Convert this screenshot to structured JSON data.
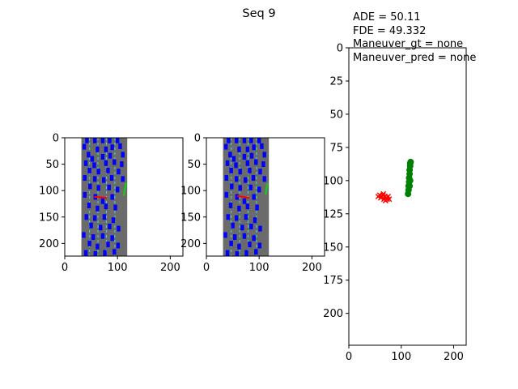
{
  "title": "Seq 9",
  "annotations": {
    "ade": "ADE = 50.11",
    "fde": "FDE = 49.332",
    "maneuver_gt": "Maneuver_gt = none",
    "maneuver_pred": "Maneuver_pred = none"
  },
  "colors": {
    "road": "#6b6b6b",
    "lane_line": "#40e0d0",
    "vehicles": "#0000ff",
    "history": "#ff0000",
    "future": "#008000",
    "future_panel": "#22c022"
  },
  "chart_data": [
    {
      "type": "scatter",
      "panel": "map-left",
      "title": "",
      "xlabel": "",
      "ylabel": "",
      "xlim": [
        0,
        224
      ],
      "ylim": [
        224,
        0
      ],
      "x_ticks": [
        "0",
        "100",
        "200"
      ],
      "y_ticks": [
        "0",
        "50",
        "100",
        "150",
        "200"
      ],
      "image": {
        "road": [
          30,
          120
        ],
        "lane_lines": [
          30,
          47,
          63,
          79,
          95,
          120
        ],
        "vehicles": [
          [
            42,
            5
          ],
          [
            57,
            5
          ],
          [
            72,
            5
          ],
          [
            85,
            5
          ],
          [
            100,
            5
          ],
          [
            37,
            17
          ],
          [
            62,
            22
          ],
          [
            78,
            22
          ],
          [
            90,
            18
          ],
          [
            105,
            16
          ],
          [
            45,
            32
          ],
          [
            52,
            40
          ],
          [
            72,
            36
          ],
          [
            86,
            34
          ],
          [
            110,
            32
          ],
          [
            40,
            48
          ],
          [
            56,
            52
          ],
          [
            78,
            48
          ],
          [
            94,
            46
          ],
          [
            108,
            50
          ],
          [
            47,
            62
          ],
          [
            64,
            64
          ],
          [
            82,
            62
          ],
          [
            102,
            64
          ],
          [
            38,
            76
          ],
          [
            57,
            78
          ],
          [
            74,
            80
          ],
          [
            89,
            76
          ],
          [
            110,
            78
          ],
          [
            48,
            92
          ],
          [
            64,
            95
          ],
          [
            84,
            94
          ],
          [
            100,
            98
          ],
          [
            38,
            108
          ],
          [
            58,
            112
          ],
          [
            72,
            120
          ],
          [
            90,
            112
          ],
          [
            46,
            128
          ],
          [
            62,
            134
          ],
          [
            78,
            130
          ],
          [
            96,
            132
          ],
          [
            41,
            150
          ],
          [
            57,
            152
          ],
          [
            75,
            150
          ],
          [
            92,
            156
          ],
          [
            50,
            166
          ],
          [
            68,
            170
          ],
          [
            85,
            168
          ],
          [
            102,
            172
          ],
          [
            36,
            184
          ],
          [
            54,
            188
          ],
          [
            72,
            186
          ],
          [
            90,
            190
          ],
          [
            47,
            200
          ],
          [
            62,
            206
          ],
          [
            82,
            202
          ],
          [
            101,
            204
          ],
          [
            40,
            218
          ],
          [
            58,
            220
          ],
          [
            76,
            218
          ],
          [
            94,
            216
          ]
        ],
        "history": [
          [
            56,
            112
          ],
          [
            62,
            112
          ],
          [
            68,
            113
          ],
          [
            74,
            113
          ],
          [
            80,
            114
          ]
        ],
        "future": [
          [
            112,
            110
          ],
          [
            113,
            104
          ],
          [
            114,
            98
          ],
          [
            115,
            92
          ],
          [
            116,
            88
          ],
          [
            117,
            85
          ]
        ]
      }
    },
    {
      "type": "scatter",
      "panel": "map-middle",
      "title": "",
      "xlabel": "",
      "ylabel": "",
      "xlim": [
        0,
        224
      ],
      "ylim": [
        224,
        0
      ],
      "x_ticks": [
        "0",
        "100",
        "200"
      ],
      "y_ticks": [
        "0",
        "50",
        "100",
        "150",
        "200"
      ],
      "image": {
        "road": [
          30,
          120
        ],
        "lane_lines": [
          30,
          47,
          63,
          79,
          95,
          120
        ],
        "vehicles": [
          [
            42,
            5
          ],
          [
            57,
            5
          ],
          [
            72,
            5
          ],
          [
            85,
            5
          ],
          [
            100,
            5
          ],
          [
            37,
            17
          ],
          [
            62,
            22
          ],
          [
            78,
            22
          ],
          [
            90,
            18
          ],
          [
            105,
            16
          ],
          [
            45,
            32
          ],
          [
            52,
            40
          ],
          [
            72,
            36
          ],
          [
            86,
            34
          ],
          [
            110,
            32
          ],
          [
            40,
            48
          ],
          [
            56,
            52
          ],
          [
            78,
            48
          ],
          [
            94,
            46
          ],
          [
            108,
            50
          ],
          [
            47,
            62
          ],
          [
            64,
            64
          ],
          [
            82,
            62
          ],
          [
            102,
            64
          ],
          [
            38,
            76
          ],
          [
            57,
            78
          ],
          [
            74,
            80
          ],
          [
            89,
            76
          ],
          [
            110,
            78
          ],
          [
            48,
            92
          ],
          [
            64,
            95
          ],
          [
            84,
            94
          ],
          [
            100,
            98
          ],
          [
            38,
            108
          ],
          [
            58,
            112
          ],
          [
            72,
            120
          ],
          [
            90,
            112
          ],
          [
            46,
            128
          ],
          [
            62,
            134
          ],
          [
            78,
            130
          ],
          [
            96,
            132
          ],
          [
            41,
            150
          ],
          [
            57,
            152
          ],
          [
            75,
            150
          ],
          [
            92,
            156
          ],
          [
            50,
            166
          ],
          [
            68,
            170
          ],
          [
            85,
            168
          ],
          [
            102,
            172
          ],
          [
            36,
            184
          ],
          [
            54,
            188
          ],
          [
            72,
            186
          ],
          [
            90,
            190
          ],
          [
            47,
            200
          ],
          [
            62,
            206
          ],
          [
            82,
            202
          ],
          [
            101,
            204
          ],
          [
            40,
            218
          ],
          [
            58,
            220
          ],
          [
            76,
            218
          ],
          [
            94,
            216
          ]
        ],
        "history": [
          [
            58,
            110
          ],
          [
            64,
            111
          ],
          [
            70,
            112
          ],
          [
            76,
            113
          ],
          [
            82,
            114
          ]
        ],
        "future": [
          [
            112,
            108
          ],
          [
            113,
            102
          ],
          [
            114,
            96
          ],
          [
            115,
            90
          ],
          [
            116,
            86
          ]
        ]
      }
    },
    {
      "type": "scatter",
      "panel": "trajectory",
      "title": "",
      "xlabel": "",
      "ylabel": "",
      "xlim": [
        0,
        224
      ],
      "ylim": [
        224,
        0
      ],
      "x_ticks": [
        "0",
        "100",
        "200"
      ],
      "y_ticks": [
        "0",
        "25",
        "50",
        "75",
        "100",
        "125",
        "150",
        "175",
        "200"
      ],
      "series": [
        {
          "marker": "x",
          "color": "#ff0000",
          "points": [
            [
              56,
              112
            ],
            [
              59,
              111
            ],
            [
              61,
              113
            ],
            [
              63,
              112
            ],
            [
              65,
              111
            ],
            [
              67,
              114
            ],
            [
              69,
              112
            ],
            [
              71,
              113
            ],
            [
              73,
              114
            ],
            [
              75,
              112
            ],
            [
              77,
              114
            ],
            [
              66,
              110
            ],
            [
              70,
              115
            ]
          ]
        },
        {
          "marker": "o",
          "color": "#008000",
          "points": [
            [
              113,
              110
            ],
            [
              114,
              107
            ],
            [
              114,
              104
            ],
            [
              115,
              101
            ],
            [
              115,
              98
            ],
            [
              116,
              95
            ],
            [
              116,
              92
            ],
            [
              117,
              89
            ],
            [
              117,
              87
            ],
            [
              118,
              86
            ],
            [
              117,
              100
            ],
            [
              116,
              104
            ]
          ]
        }
      ]
    }
  ]
}
